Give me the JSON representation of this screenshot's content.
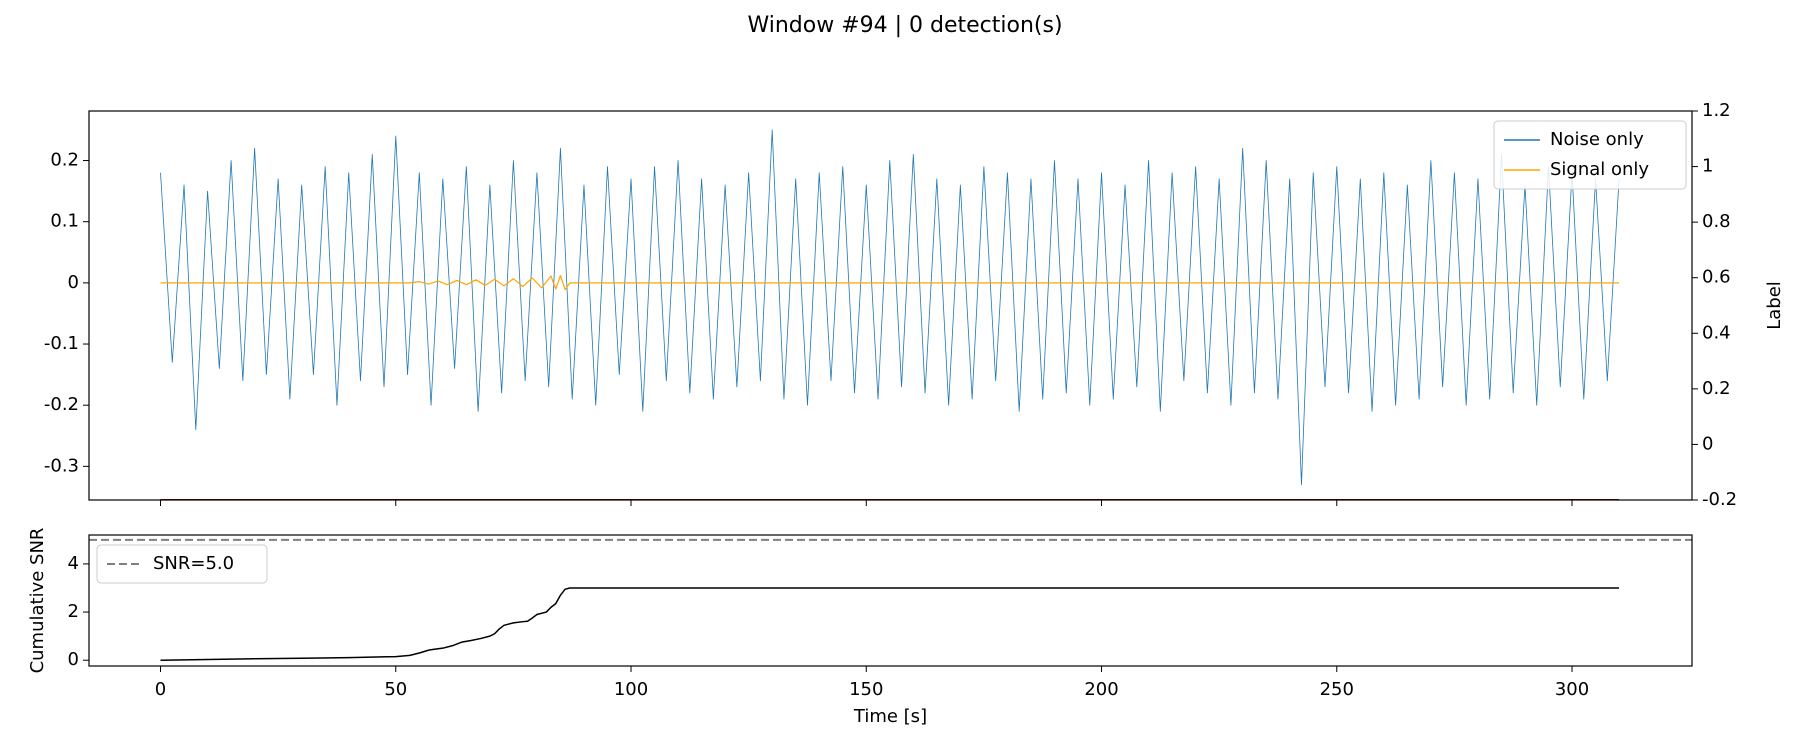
{
  "title": "Window #94 | 0 detection(s)",
  "chart_data": [
    {
      "type": "line",
      "xlim": [
        -15.2,
        325.5
      ],
      "xticks": [
        0,
        50,
        100,
        150,
        200,
        250,
        300
      ],
      "xtick_labels": false,
      "ylim": [
        -0.355,
        0.281
      ],
      "yticks": [
        -0.3,
        -0.2,
        -0.1,
        0.0,
        0.1,
        0.2
      ],
      "y2lim": [
        -0.2,
        1.2
      ],
      "y2ticks": [
        -0.2,
        0.0,
        0.2,
        0.4,
        0.6,
        0.8,
        1.0,
        1.2
      ],
      "y2label": "Label",
      "legend": "upper right",
      "series": [
        {
          "name": "Noise only",
          "color": "#1f77b4",
          "width": 0.8,
          "x": [
            0,
            2.5,
            5,
            7.5,
            10,
            12.5,
            15,
            17.5,
            20,
            22.5,
            25,
            27.5,
            30,
            32.5,
            35,
            37.5,
            40,
            42.5,
            45,
            47.5,
            50,
            52.5,
            55,
            57.5,
            60,
            62.5,
            65,
            67.5,
            70,
            72.5,
            75,
            77.5,
            80,
            82.5,
            85,
            87.5,
            90,
            92.5,
            95,
            97.5,
            100,
            102.5,
            105,
            107.5,
            110,
            112.5,
            115,
            117.5,
            120,
            122.5,
            125,
            127.5,
            130,
            132.5,
            135,
            137.5,
            140,
            142.5,
            145,
            147.5,
            150,
            152.5,
            155,
            157.5,
            160,
            162.5,
            165,
            167.5,
            170,
            172.5,
            175,
            177.5,
            180,
            182.5,
            185,
            187.5,
            190,
            192.5,
            195,
            197.5,
            200,
            202.5,
            205,
            207.5,
            210,
            212.5,
            215,
            217.5,
            220,
            222.5,
            225,
            227.5,
            230,
            232.5,
            235,
            237.5,
            240,
            242.5,
            245,
            247.5,
            250,
            252.5,
            255,
            257.5,
            260,
            262.5,
            265,
            267.5,
            270,
            272.5,
            275,
            277.5,
            280,
            282.5,
            285,
            287.5,
            290,
            292.5,
            295,
            297.5,
            300,
            302.5,
            305,
            307.5,
            310
          ],
          "values": [
            0.18,
            -0.13,
            0.16,
            -0.24,
            0.15,
            -0.14,
            0.2,
            -0.16,
            0.22,
            -0.15,
            0.17,
            -0.19,
            0.16,
            -0.15,
            0.19,
            -0.2,
            0.18,
            -0.16,
            0.21,
            -0.17,
            0.24,
            -0.15,
            0.18,
            -0.2,
            0.17,
            -0.14,
            0.19,
            -0.21,
            0.16,
            -0.18,
            0.2,
            -0.16,
            0.18,
            -0.17,
            0.22,
            -0.19,
            0.16,
            -0.2,
            0.19,
            -0.15,
            0.17,
            -0.21,
            0.19,
            -0.16,
            0.2,
            -0.18,
            0.17,
            -0.19,
            0.16,
            -0.17,
            0.18,
            -0.16,
            0.25,
            -0.19,
            0.17,
            -0.2,
            0.18,
            -0.16,
            0.19,
            -0.18,
            0.16,
            -0.19,
            0.2,
            -0.17,
            0.21,
            -0.18,
            0.17,
            -0.2,
            0.16,
            -0.19,
            0.19,
            -0.16,
            0.18,
            -0.21,
            0.17,
            -0.19,
            0.2,
            -0.18,
            0.17,
            -0.2,
            0.18,
            -0.19,
            0.16,
            -0.17,
            0.2,
            -0.21,
            0.18,
            -0.16,
            0.19,
            -0.18,
            0.17,
            -0.2,
            0.22,
            -0.18,
            0.2,
            -0.19,
            0.17,
            -0.33,
            0.18,
            -0.17,
            0.19,
            -0.18,
            0.17,
            -0.21,
            0.18,
            -0.2,
            0.16,
            -0.19,
            0.2,
            -0.17,
            0.18,
            -0.2,
            0.17,
            -0.19,
            0.21,
            -0.18,
            0.16,
            -0.2,
            0.19,
            -0.17,
            0.18,
            -0.19,
            0.17,
            -0.16,
            0.17
          ]
        },
        {
          "name": "Signal only",
          "color": "#ffa500",
          "width": 1.2,
          "x": [
            0,
            53,
            55,
            57,
            59,
            61,
            63,
            65,
            67,
            69,
            71,
            73,
            75,
            77,
            79,
            81,
            83,
            84,
            85,
            86,
            87,
            310
          ],
          "values": [
            0,
            0,
            0.002,
            -0.002,
            0.003,
            -0.003,
            0.004,
            -0.003,
            0.005,
            -0.004,
            0.006,
            -0.005,
            0.007,
            -0.006,
            0.008,
            -0.008,
            0.011,
            -0.01,
            0.012,
            -0.011,
            0,
            0
          ]
        },
        {
          "color": "#8b0000",
          "width": 2,
          "axis": "y2",
          "x": [
            0,
            310
          ],
          "values": [
            -0.2,
            -0.2
          ]
        }
      ]
    },
    {
      "type": "line",
      "xlim": [
        -15.2,
        325.5
      ],
      "xticks": [
        0,
        50,
        100,
        150,
        200,
        250,
        300
      ],
      "xtick_labels": true,
      "xlabel": "Time [s]",
      "ylim": [
        -0.24,
        5.2
      ],
      "yticks": [
        0,
        2,
        4
      ],
      "ylabel": "Cumulative SNR",
      "legend": "upper left",
      "series": [
        {
          "color": "#000000",
          "width": 1.5,
          "x": [
            0,
            10,
            20,
            30,
            40,
            50,
            53,
            55,
            57,
            58,
            60,
            62,
            64,
            66,
            68,
            70,
            71,
            72,
            73,
            75,
            77,
            78,
            79,
            80,
            82,
            83,
            84,
            85,
            86,
            87,
            100,
            200,
            310
          ],
          "values": [
            0,
            0.03,
            0.06,
            0.08,
            0.11,
            0.15,
            0.2,
            0.3,
            0.42,
            0.45,
            0.5,
            0.6,
            0.75,
            0.82,
            0.9,
            1.0,
            1.1,
            1.3,
            1.45,
            1.55,
            1.6,
            1.62,
            1.75,
            1.9,
            2.0,
            2.2,
            2.35,
            2.7,
            2.95,
            3.0,
            3.0,
            3.0,
            3.0
          ]
        }
      ],
      "hlines": [
        {
          "value": 5.0,
          "label": "SNR=5.0",
          "color": "#808080",
          "dashed": true
        }
      ]
    }
  ]
}
